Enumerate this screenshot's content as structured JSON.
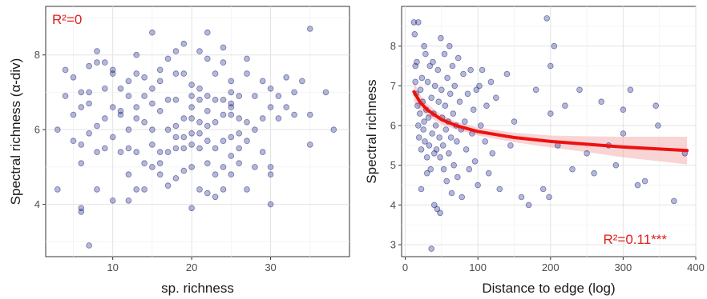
{
  "colors": {
    "points": "#1a237e",
    "fit": "#ee1111",
    "band": "#f2a0a0",
    "annotation": "#e0201b"
  },
  "chart_data": [
    {
      "type": "scatter",
      "xlabel": "sp. richness",
      "ylabel": "Spectral richness (α-div)",
      "annotation": "R²=0",
      "xlim": [
        1.5,
        40
      ],
      "ylim": [
        2.6,
        9.3
      ],
      "xticks": [
        10,
        20,
        30
      ],
      "yticks": [
        4,
        6,
        8
      ],
      "points": [
        [
          3,
          6.0
        ],
        [
          3,
          4.4
        ],
        [
          4,
          7.6
        ],
        [
          4,
          6.9
        ],
        [
          5,
          7.4
        ],
        [
          5,
          6.4
        ],
        [
          5,
          5.7
        ],
        [
          6,
          7.0
        ],
        [
          6,
          6.6
        ],
        [
          6,
          5.1
        ],
        [
          6,
          3.9
        ],
        [
          6,
          3.8
        ],
        [
          6,
          5.6
        ],
        [
          7,
          7.7
        ],
        [
          7,
          7.0
        ],
        [
          7,
          6.7
        ],
        [
          7,
          5.9
        ],
        [
          7,
          2.9
        ],
        [
          8,
          8.1
        ],
        [
          8,
          7.8
        ],
        [
          8,
          6.1
        ],
        [
          8,
          5.4
        ],
        [
          8,
          4.4
        ],
        [
          9,
          7.8
        ],
        [
          9,
          7.1
        ],
        [
          9,
          6.3
        ],
        [
          9,
          5.5
        ],
        [
          10,
          7.5
        ],
        [
          10,
          7.6
        ],
        [
          10,
          6.6
        ],
        [
          10,
          5.8
        ],
        [
          10,
          4.1
        ],
        [
          11,
          7.1
        ],
        [
          11,
          6.5
        ],
        [
          11,
          6.4
        ],
        [
          11,
          5.4
        ],
        [
          12,
          7.3
        ],
        [
          12,
          6.9
        ],
        [
          12,
          6.0
        ],
        [
          12,
          5.5
        ],
        [
          12,
          4.8
        ],
        [
          12,
          4.1
        ],
        [
          13,
          8.0
        ],
        [
          13,
          7.5
        ],
        [
          13,
          6.6
        ],
        [
          13,
          6.3
        ],
        [
          13,
          5.4
        ],
        [
          13,
          4.4
        ],
        [
          14,
          7.4
        ],
        [
          14,
          6.9
        ],
        [
          14,
          6.2
        ],
        [
          14,
          5.1
        ],
        [
          14,
          4.4
        ],
        [
          15,
          8.6
        ],
        [
          15,
          7.1
        ],
        [
          15,
          6.7
        ],
        [
          15,
          6.0
        ],
        [
          15,
          5.6
        ],
        [
          15,
          5.0
        ],
        [
          16,
          7.6
        ],
        [
          16,
          7.3
        ],
        [
          16,
          6.5
        ],
        [
          16,
          5.4
        ],
        [
          16,
          5.1
        ],
        [
          16,
          4.8
        ],
        [
          17,
          7.9
        ],
        [
          17,
          6.8
        ],
        [
          17,
          6.0
        ],
        [
          17,
          5.4
        ],
        [
          17,
          4.5
        ],
        [
          18,
          8.1
        ],
        [
          18,
          7.5
        ],
        [
          18,
          6.8
        ],
        [
          18,
          6.1
        ],
        [
          18,
          5.8
        ],
        [
          18,
          5.5
        ],
        [
          18,
          4.7
        ],
        [
          19,
          8.3
        ],
        [
          19,
          7.5
        ],
        [
          19,
          6.3
        ],
        [
          19,
          5.8
        ],
        [
          19,
          5.5
        ],
        [
          19,
          4.9
        ],
        [
          20,
          7.2
        ],
        [
          20,
          6.9
        ],
        [
          20,
          6.6
        ],
        [
          20,
          6.3
        ],
        [
          20,
          5.9
        ],
        [
          20,
          5.6
        ],
        [
          20,
          5.0
        ],
        [
          20,
          3.9
        ],
        [
          21,
          8.1
        ],
        [
          21,
          7.1
        ],
        [
          21,
          6.8
        ],
        [
          21,
          6.2
        ],
        [
          21,
          5.9
        ],
        [
          21,
          5.5
        ],
        [
          21,
          4.4
        ],
        [
          22,
          8.6
        ],
        [
          22,
          7.9
        ],
        [
          22,
          6.9
        ],
        [
          22,
          6.5
        ],
        [
          22,
          6.1
        ],
        [
          22,
          5.7
        ],
        [
          22,
          5.1
        ],
        [
          22,
          4.3
        ],
        [
          23,
          7.5
        ],
        [
          23,
          6.8
        ],
        [
          23,
          6.2
        ],
        [
          23,
          5.5
        ],
        [
          23,
          4.8
        ],
        [
          23,
          4.2
        ],
        [
          24,
          8.2
        ],
        [
          24,
          7.8
        ],
        [
          24,
          6.8
        ],
        [
          24,
          6.4
        ],
        [
          24,
          5.7
        ],
        [
          24,
          5.0
        ],
        [
          24,
          4.4
        ],
        [
          25,
          7.3
        ],
        [
          25,
          7.0
        ],
        [
          25,
          6.7
        ],
        [
          25,
          6.6
        ],
        [
          25,
          6.4
        ],
        [
          25,
          5.8
        ],
        [
          25,
          5.3
        ],
        [
          25,
          4.8
        ],
        [
          26,
          6.9
        ],
        [
          26,
          6.3
        ],
        [
          26,
          5.9
        ],
        [
          26,
          5.5
        ],
        [
          26,
          5.1
        ],
        [
          27,
          7.9
        ],
        [
          27,
          7.5
        ],
        [
          27,
          6.2
        ],
        [
          27,
          5.7
        ],
        [
          27,
          4.4
        ],
        [
          28,
          6.9
        ],
        [
          28,
          6.0
        ],
        [
          28,
          5.0
        ],
        [
          29,
          7.3
        ],
        [
          29,
          6.3
        ],
        [
          29,
          5.4
        ],
        [
          30,
          7.1
        ],
        [
          30,
          6.6
        ],
        [
          30,
          5.0
        ],
        [
          30,
          4.8
        ],
        [
          30,
          4.0
        ],
        [
          31,
          6.9
        ],
        [
          31,
          6.3
        ],
        [
          32,
          7.4
        ],
        [
          32,
          6.6
        ],
        [
          33,
          7.0
        ],
        [
          33,
          6.4
        ],
        [
          34,
          7.3
        ],
        [
          35,
          8.7
        ],
        [
          35,
          6.4
        ],
        [
          35,
          5.6
        ],
        [
          37,
          7.0
        ],
        [
          38,
          6.0
        ]
      ]
    },
    {
      "type": "scatter",
      "xlabel": "Distance to edge (log)",
      "ylabel": "Spectral richness",
      "annotation": "R²=0.11***",
      "xlim": [
        -5,
        400
      ],
      "ylim": [
        2.7,
        9.0
      ],
      "xticks": [
        0,
        100,
        200,
        300,
        400
      ],
      "yticks": [
        3,
        4,
        5,
        6,
        7,
        8
      ],
      "fit": {
        "x": [
          12,
          20,
          30,
          50,
          70,
          100,
          150,
          200,
          250,
          300,
          350,
          388
        ],
        "y": [
          6.85,
          6.6,
          6.4,
          6.15,
          6.0,
          5.85,
          5.7,
          5.6,
          5.53,
          5.46,
          5.41,
          5.37
        ]
      },
      "band": {
        "x": [
          12,
          20,
          30,
          50,
          70,
          100,
          150,
          200,
          250,
          300,
          350,
          388
        ],
        "lower": [
          6.6,
          6.4,
          6.25,
          6.03,
          5.9,
          5.75,
          5.58,
          5.45,
          5.33,
          5.2,
          5.1,
          5.02
        ],
        "upper": [
          7.1,
          6.8,
          6.55,
          6.27,
          6.1,
          5.95,
          5.82,
          5.75,
          5.73,
          5.72,
          5.72,
          5.72
        ]
      },
      "points": [
        [
          12,
          8.6
        ],
        [
          13,
          8.3
        ],
        [
          14,
          7.5
        ],
        [
          14,
          7.1
        ],
        [
          15,
          6.8
        ],
        [
          16,
          7.6
        ],
        [
          17,
          6.5
        ],
        [
          18,
          6.0
        ],
        [
          18,
          8.6
        ],
        [
          19,
          5.7
        ],
        [
          20,
          6.3
        ],
        [
          21,
          6.9
        ],
        [
          22,
          5.4
        ],
        [
          22,
          4.4
        ],
        [
          23,
          7.2
        ],
        [
          24,
          6.6
        ],
        [
          25,
          5.9
        ],
        [
          26,
          8.0
        ],
        [
          26,
          6.1
        ],
        [
          27,
          5.6
        ],
        [
          28,
          7.8
        ],
        [
          29,
          6.4
        ],
        [
          30,
          5.2
        ],
        [
          30,
          4.8
        ],
        [
          31,
          7.1
        ],
        [
          32,
          6.2
        ],
        [
          33,
          5.5
        ],
        [
          34,
          7.5
        ],
        [
          35,
          4.9
        ],
        [
          36,
          6.7
        ],
        [
          36,
          2.9
        ],
        [
          37,
          5.8
        ],
        [
          38,
          7.6
        ],
        [
          39,
          6.3
        ],
        [
          40,
          5.3
        ],
        [
          40,
          4.0
        ],
        [
          41,
          7.0
        ],
        [
          42,
          6.0
        ],
        [
          43,
          5.4
        ],
        [
          44,
          3.9
        ],
        [
          45,
          7.4
        ],
        [
          46,
          6.6
        ],
        [
          47,
          5.7
        ],
        [
          48,
          5.2
        ],
        [
          48,
          3.8
        ],
        [
          49,
          8.2
        ],
        [
          50,
          6.9
        ],
        [
          51,
          6.2
        ],
        [
          52,
          5.5
        ],
        [
          53,
          4.9
        ],
        [
          54,
          7.8
        ],
        [
          55,
          6.5
        ],
        [
          56,
          5.9
        ],
        [
          57,
          4.6
        ],
        [
          58,
          7.2
        ],
        [
          59,
          6.1
        ],
        [
          60,
          5.3
        ],
        [
          61,
          8.0
        ],
        [
          62,
          6.8
        ],
        [
          63,
          5.7
        ],
        [
          64,
          4.3
        ],
        [
          65,
          7.5
        ],
        [
          66,
          6.3
        ],
        [
          67,
          5.0
        ],
        [
          68,
          7.0
        ],
        [
          70,
          6.0
        ],
        [
          71,
          5.6
        ],
        [
          72,
          4.7
        ],
        [
          73,
          7.7
        ],
        [
          75,
          6.6
        ],
        [
          77,
          5.9
        ],
        [
          78,
          4.2
        ],
        [
          80,
          7.3
        ],
        [
          82,
          6.1
        ],
        [
          84,
          5.4
        ],
        [
          86,
          6.8
        ],
        [
          88,
          4.9
        ],
        [
          90,
          7.4
        ],
        [
          92,
          5.8
        ],
        [
          94,
          6.4
        ],
        [
          96,
          5.1
        ],
        [
          98,
          6.9
        ],
        [
          100,
          4.5
        ],
        [
          102,
          7.0
        ],
        [
          104,
          6.0
        ],
        [
          106,
          7.4
        ],
        [
          110,
          5.6
        ],
        [
          112,
          6.5
        ],
        [
          115,
          4.8
        ],
        [
          118,
          7.1
        ],
        [
          120,
          5.3
        ],
        [
          125,
          6.7
        ],
        [
          130,
          4.4
        ],
        [
          140,
          7.3
        ],
        [
          145,
          5.5
        ],
        [
          150,
          6.1
        ],
        [
          160,
          4.2
        ],
        [
          170,
          4.0
        ],
        [
          180,
          6.9
        ],
        [
          190,
          4.4
        ],
        [
          195,
          8.7
        ],
        [
          198,
          4.2
        ],
        [
          200,
          7.5
        ],
        [
          200,
          6.3
        ],
        [
          205,
          8.0
        ],
        [
          210,
          5.5
        ],
        [
          220,
          6.5
        ],
        [
          230,
          4.9
        ],
        [
          240,
          6.9
        ],
        [
          250,
          5.3
        ],
        [
          260,
          4.8
        ],
        [
          270,
          6.6
        ],
        [
          280,
          5.5
        ],
        [
          290,
          5.0
        ],
        [
          300,
          6.4
        ],
        [
          300,
          5.8
        ],
        [
          310,
          6.9
        ],
        [
          320,
          4.5
        ],
        [
          330,
          4.6
        ],
        [
          345,
          6.5
        ],
        [
          348,
          6.0
        ],
        [
          370,
          4.1
        ],
        [
          385,
          5.3
        ]
      ]
    }
  ]
}
